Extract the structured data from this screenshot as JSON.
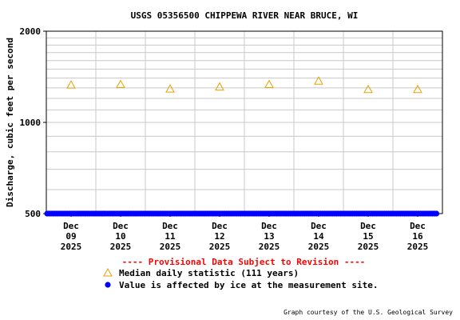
{
  "chart_data": {
    "type": "scatter",
    "title": "USGS 05356500 CHIPPEWA RIVER NEAR BRUCE, WI",
    "ylabel": "Discharge, cubic feet per second",
    "yscale": "log",
    "ylim": [
      500,
      2000
    ],
    "yticks": [
      "500",
      "1000",
      "2000"
    ],
    "categories": [
      {
        "month": "Dec",
        "day": "09",
        "year": "2025"
      },
      {
        "month": "Dec",
        "day": "10",
        "year": "2025"
      },
      {
        "month": "Dec",
        "day": "11",
        "year": "2025"
      },
      {
        "month": "Dec",
        "day": "12",
        "year": "2025"
      },
      {
        "month": "Dec",
        "day": "13",
        "year": "2025"
      },
      {
        "month": "Dec",
        "day": "14",
        "year": "2025"
      },
      {
        "month": "Dec",
        "day": "15",
        "year": "2025"
      },
      {
        "month": "Dec",
        "day": "16",
        "year": "2025"
      }
    ],
    "series": [
      {
        "name": "Median daily statistic (111 years)",
        "marker": "triangle",
        "color": "#e8a000",
        "values": [
          1330,
          1335,
          1290,
          1310,
          1335,
          1370,
          1285,
          1285
        ]
      },
      {
        "name": "Value is affected by ice at the measurement site.",
        "marker": "dot",
        "color": "#0000ff",
        "start": "Dec 09 2025",
        "end": "Dec 16 2025",
        "value": 500
      }
    ],
    "grid": true,
    "notice": "---- Provisional Data Subject to Revision ----",
    "credit": "Graph courtesy of the U.S. Geological Survey"
  }
}
